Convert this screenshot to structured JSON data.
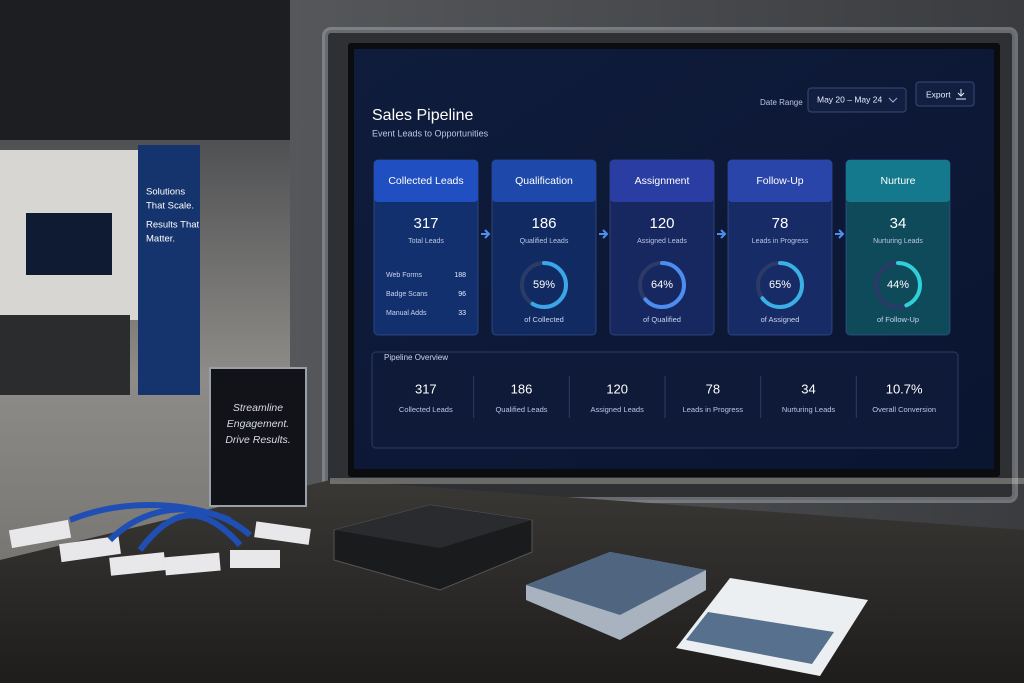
{
  "booth": {
    "banner": [
      "Solutions",
      "That Scale.",
      "Results That",
      "Matter."
    ],
    "sign": [
      "Streamline",
      "Engagement.",
      "Drive Results."
    ]
  },
  "dashboard": {
    "title": "Sales Pipeline",
    "subtitle": "Event Leads to Opportunities",
    "date_range_label": "Date Range",
    "date_range": "May 20 – May 24",
    "export": "Export",
    "stages": [
      {
        "name": "Collected Leads",
        "count": 317,
        "count_label": "Total Leads",
        "breakdown": [
          {
            "label": "Web Forms",
            "value": 188
          },
          {
            "label": "Badge Scans",
            "value": 96
          },
          {
            "label": "Manual Adds",
            "value": 33
          }
        ]
      },
      {
        "name": "Qualification",
        "count": 186,
        "count_label": "Qualified Leads",
        "percent": {
          "value": 59,
          "label": "59%"
        },
        "percent_label": "of Collected"
      },
      {
        "name": "Assignment",
        "count": 120,
        "count_label": "Assigned Leads",
        "percent": {
          "value": 64,
          "label": "64%"
        },
        "percent_label": "of Qualified"
      },
      {
        "name": "Follow-Up",
        "count": 78,
        "count_label": "Leads in Progress",
        "percent": {
          "value": 65,
          "label": "65%"
        },
        "percent_label": "of Assigned"
      },
      {
        "name": "Nurture",
        "count": 34,
        "count_label": "Nurturing Leads",
        "percent": {
          "value": 44,
          "label": "44%"
        },
        "percent_label": "of Follow-Up"
      }
    ],
    "overview": {
      "title": "Pipeline Overview",
      "items": [
        {
          "value": 317,
          "label": "Collected Leads"
        },
        {
          "value": 186,
          "label": "Qualified Leads"
        },
        {
          "value": 120,
          "label": "Assigned Leads"
        },
        {
          "value": 78,
          "label": "Leads in Progress"
        },
        {
          "value": 34,
          "label": "Nurturing Leads"
        },
        {
          "value": {
            "value": 10.7,
            "label": "10.7%"
          },
          "label": "Overall Conversion"
        }
      ]
    }
  }
}
